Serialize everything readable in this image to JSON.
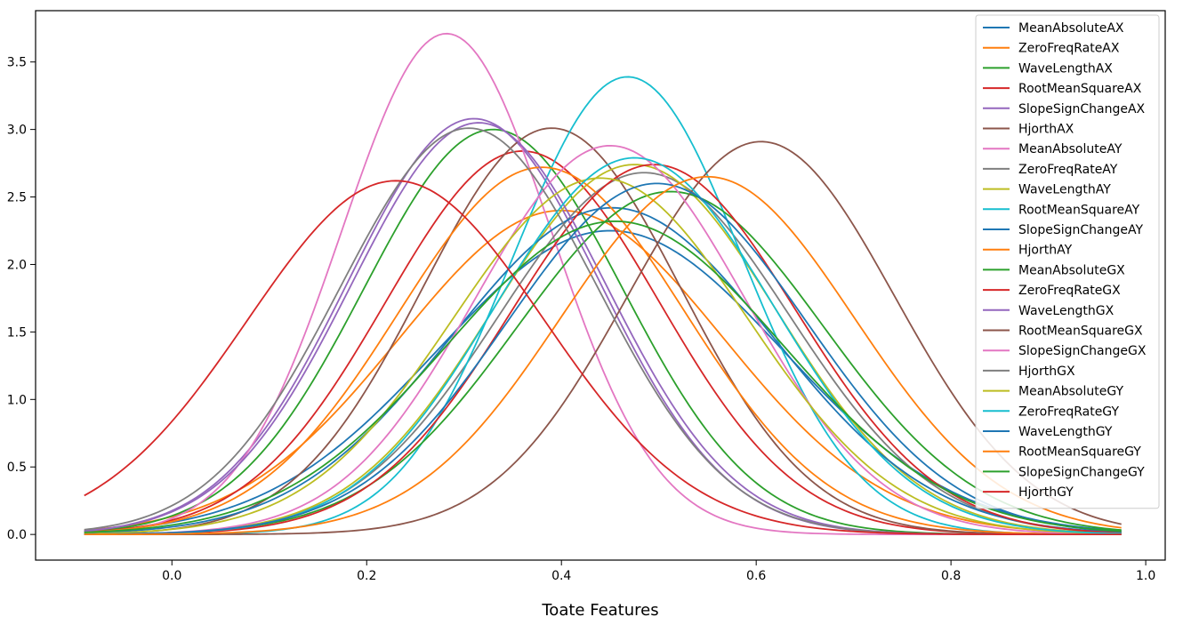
{
  "chart_data": {
    "type": "line",
    "xlabel": "Toate Features",
    "ylabel": "",
    "xlim": [
      -0.14,
      1.02
    ],
    "ylim": [
      -0.19,
      3.88
    ],
    "x_range": [
      -0.09,
      0.975
    ],
    "xticks": [
      0.0,
      0.2,
      0.4,
      0.6,
      0.8,
      1.0
    ],
    "xtick_labels": [
      "0.0",
      "0.2",
      "0.4",
      "0.6",
      "0.8",
      "1.0"
    ],
    "yticks": [
      0.0,
      0.5,
      1.0,
      1.5,
      2.0,
      2.5,
      3.0,
      3.5
    ],
    "ytick_labels": [
      "0.0",
      "0.5",
      "1.0",
      "1.5",
      "2.0",
      "2.5",
      "3.0",
      "3.5"
    ],
    "grid": false,
    "legend_position": "top-right",
    "series": [
      {
        "name": "MeanAbsoluteAX",
        "color": "#1f77b4",
        "mu": 0.45,
        "peak": 2.25
      },
      {
        "name": "ZeroFreqRateAX",
        "color": "#ff7f0e",
        "mu": 0.4,
        "peak": 2.4
      },
      {
        "name": "WaveLengthAX",
        "color": "#2ca02c",
        "mu": 0.33,
        "peak": 3.0
      },
      {
        "name": "RootMeanSquareAX",
        "color": "#d62728",
        "mu": 0.36,
        "peak": 2.84
      },
      {
        "name": "SlopeSignChangeAX",
        "color": "#9467bd",
        "mu": 0.31,
        "peak": 3.08
      },
      {
        "name": "HjorthAX",
        "color": "#8c564b",
        "mu": 0.39,
        "peak": 3.01
      },
      {
        "name": "MeanAbsoluteAY",
        "color": "#e377c2",
        "mu": 0.282,
        "peak": 3.71
      },
      {
        "name": "ZeroFreqRateAY",
        "color": "#7f7f7f",
        "mu": 0.485,
        "peak": 2.68
      },
      {
        "name": "WaveLengthAY",
        "color": "#bcbd22",
        "mu": 0.475,
        "peak": 2.74
      },
      {
        "name": "RootMeanSquareAY",
        "color": "#17becf",
        "mu": 0.468,
        "peak": 3.39
      },
      {
        "name": "SlopeSignChangeAY",
        "color": "#1f77b4",
        "mu": 0.452,
        "peak": 2.42
      },
      {
        "name": "HjorthAY",
        "color": "#ff7f0e",
        "mu": 0.38,
        "peak": 2.72
      },
      {
        "name": "MeanAbsoluteGX",
        "color": "#2ca02c",
        "mu": 0.512,
        "peak": 2.54
      },
      {
        "name": "ZeroFreqRateGX",
        "color": "#d62728",
        "mu": 0.495,
        "peak": 2.74
      },
      {
        "name": "WaveLengthGX",
        "color": "#9467bd",
        "mu": 0.315,
        "peak": 3.05
      },
      {
        "name": "RootMeanSquareGX",
        "color": "#8c564b",
        "mu": 0.605,
        "peak": 2.91
      },
      {
        "name": "SlopeSignChangeGX",
        "color": "#e377c2",
        "mu": 0.45,
        "peak": 2.88
      },
      {
        "name": "HjorthGX",
        "color": "#7f7f7f",
        "mu": 0.305,
        "peak": 3.01
      },
      {
        "name": "MeanAbsoluteGY",
        "color": "#bcbd22",
        "mu": 0.44,
        "peak": 2.64
      },
      {
        "name": "ZeroFreqRateGY",
        "color": "#17becf",
        "mu": 0.475,
        "peak": 2.79
      },
      {
        "name": "WaveLengthGY",
        "color": "#1f77b4",
        "mu": 0.498,
        "peak": 2.6
      },
      {
        "name": "RootMeanSquareGY",
        "color": "#ff7f0e",
        "mu": 0.55,
        "peak": 2.65
      },
      {
        "name": "SlopeSignChangeGY",
        "color": "#2ca02c",
        "mu": 0.455,
        "peak": 2.32
      },
      {
        "name": "HjorthGY",
        "color": "#d62728",
        "mu": 0.23,
        "peak": 2.62
      }
    ]
  }
}
